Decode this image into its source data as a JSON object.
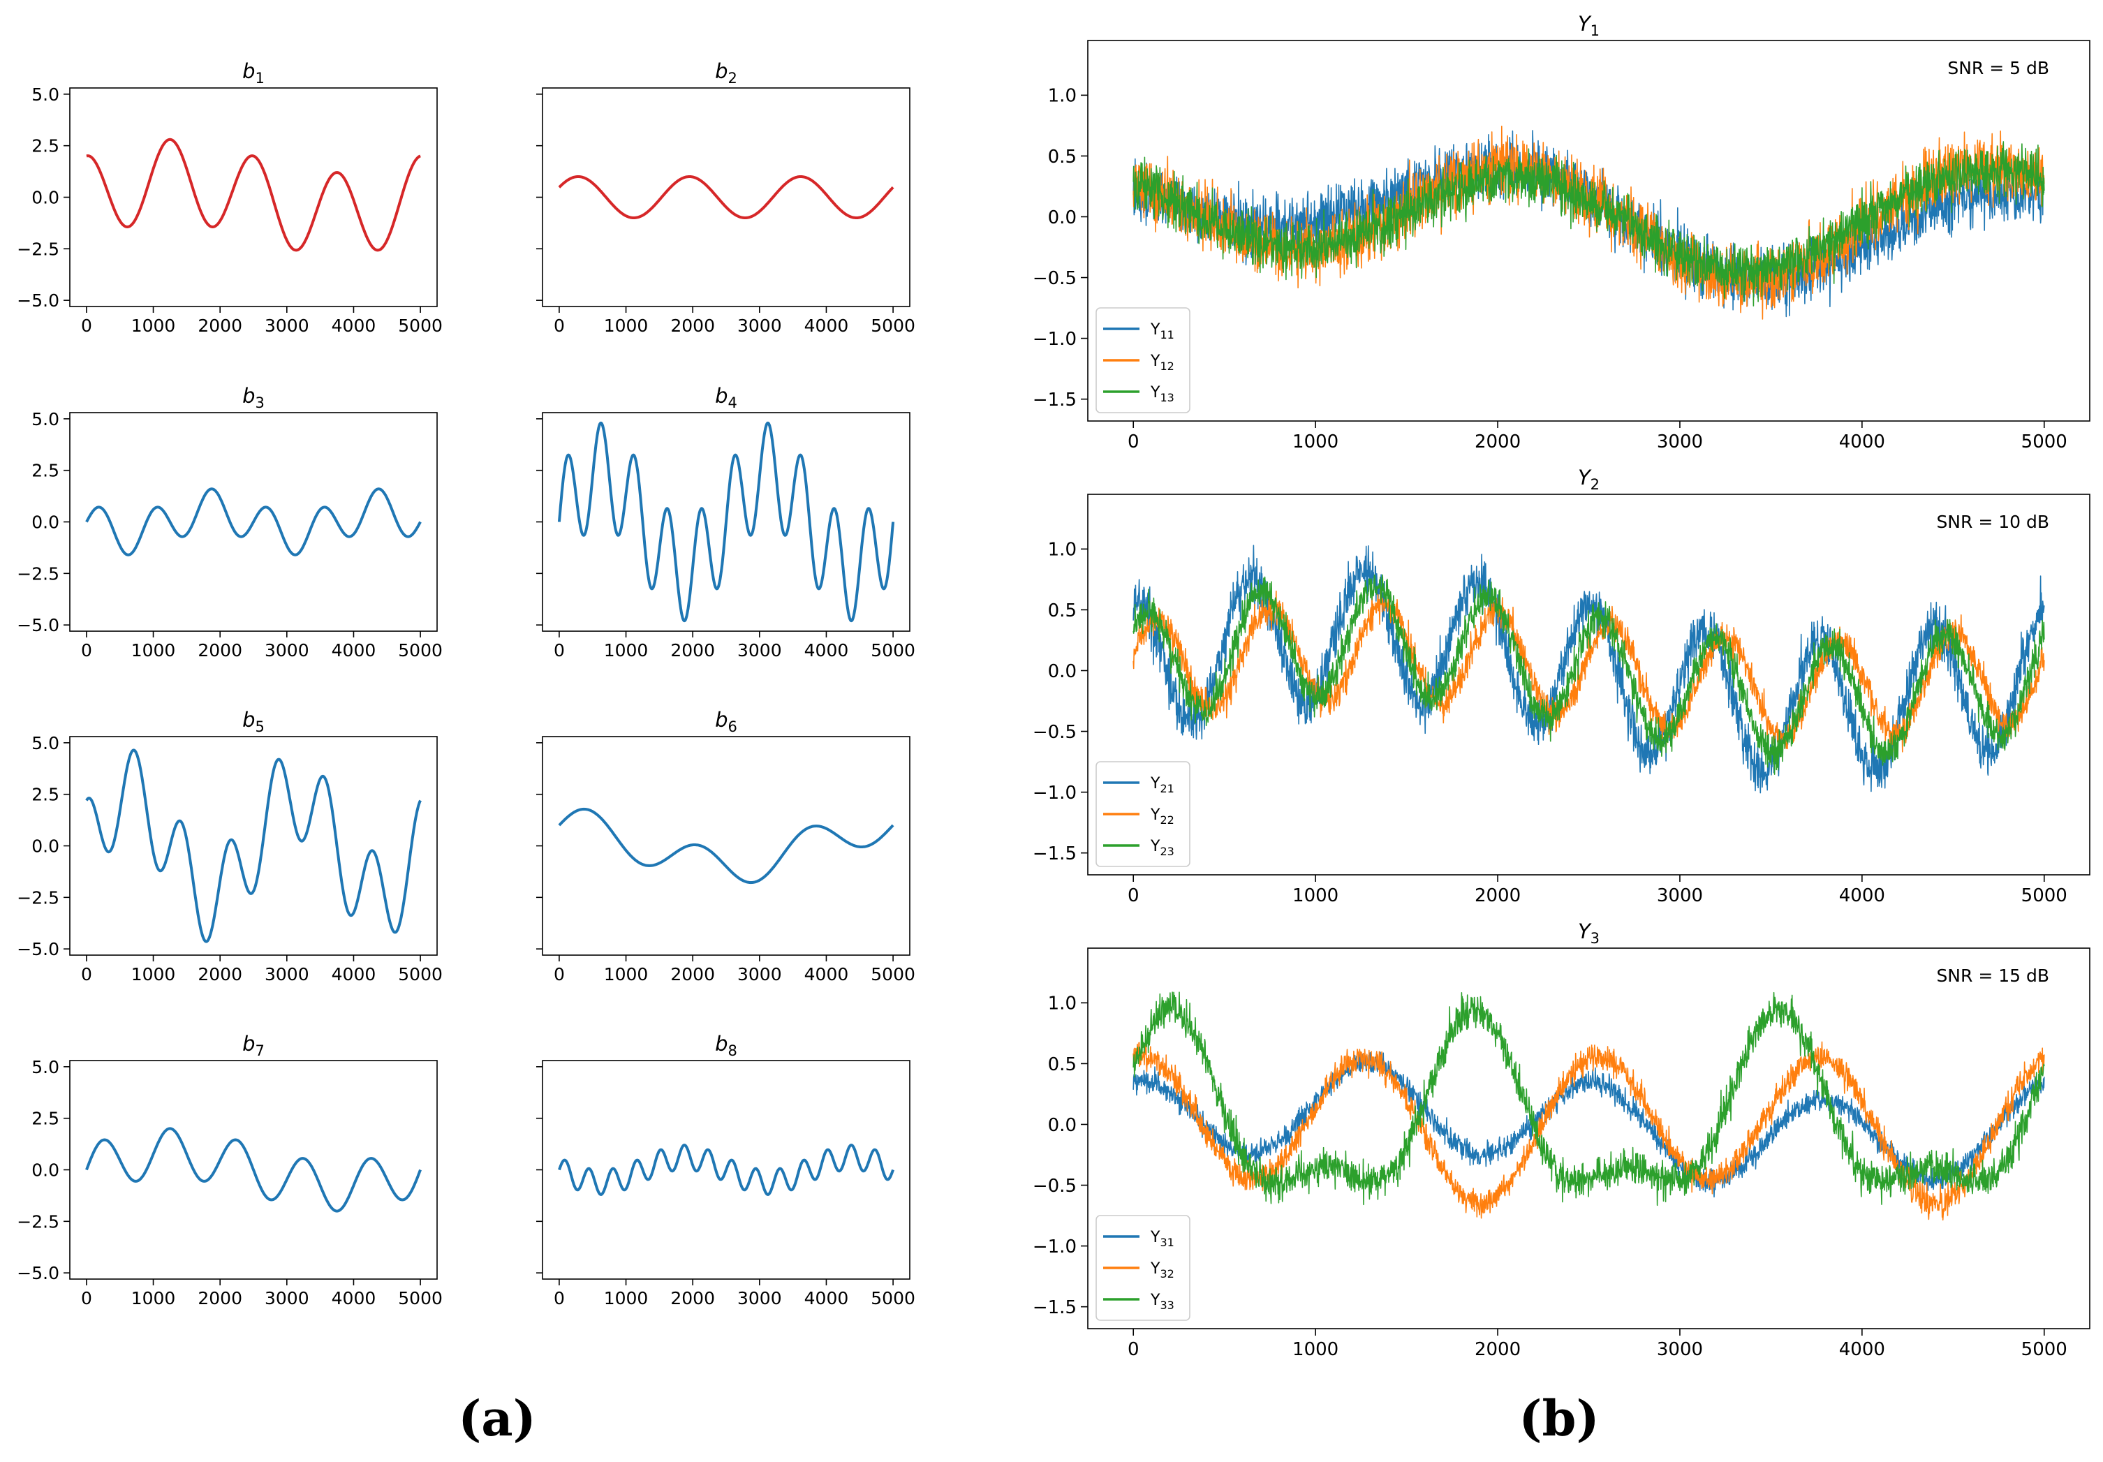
{
  "figure": {
    "panel_a_label": "(a)",
    "panel_b_label": "(b)"
  },
  "chart_data": [
    {
      "type": "line",
      "id": "b1",
      "title": {
        "base": "b",
        "sub": "1"
      },
      "color": "#d62728",
      "x_range": [
        0,
        5000
      ],
      "xlim": [
        -250,
        5250
      ],
      "ylim": [
        -5.3,
        5.3
      ],
      "xticks": [
        "0",
        "1000",
        "2000",
        "3000",
        "4000",
        "5000"
      ],
      "yticks": [
        5.0,
        2.5,
        0.0,
        -2.5,
        -5.0
      ],
      "ytick_labels": [
        "5.0",
        "2.5",
        "0.0",
        "−2.5",
        "−5.0"
      ],
      "show_ytick_labels": true,
      "components": [
        {
          "amp": 2.0,
          "freq": 4.0,
          "phase": 1.5708
        },
        {
          "amp": 0.8,
          "freq": 1.0,
          "phase": 0.0
        }
      ],
      "noise": 0
    },
    {
      "type": "line",
      "id": "b2",
      "title": {
        "base": "b",
        "sub": "2"
      },
      "color": "#d62728",
      "x_range": [
        0,
        5000
      ],
      "xlim": [
        -250,
        5250
      ],
      "ylim": [
        -5.3,
        5.3
      ],
      "xticks": [
        "0",
        "1000",
        "2000",
        "3000",
        "4000",
        "5000"
      ],
      "yticks": [
        5.0,
        2.5,
        0.0,
        -2.5,
        -5.0
      ],
      "ytick_labels": [
        "5.0",
        "2.5",
        "0.0",
        "−2.5",
        "−5.0"
      ],
      "show_ytick_labels": false,
      "components": [
        {
          "amp": 1.0,
          "freq": 3.0,
          "phase": 0.5
        }
      ],
      "noise": 0
    },
    {
      "type": "line",
      "id": "b3",
      "title": {
        "base": "b",
        "sub": "3"
      },
      "color": "#1f77b4",
      "x_range": [
        0,
        5000
      ],
      "xlim": [
        -250,
        5250
      ],
      "ylim": [
        -5.3,
        5.3
      ],
      "xticks": [
        "0",
        "1000",
        "2000",
        "3000",
        "4000",
        "5000"
      ],
      "yticks": [
        5.0,
        2.5,
        0.0,
        -2.5,
        -5.0
      ],
      "ytick_labels": [
        "5.0",
        "2.5",
        "0.0",
        "−2.5",
        "−5.0"
      ],
      "show_ytick_labels": true,
      "components": [
        {
          "amp": 1.0,
          "freq": 6.0,
          "phase": 0.0
        },
        {
          "amp": 0.6,
          "freq": 2.0,
          "phase": 3.1416
        }
      ],
      "noise": 0
    },
    {
      "type": "line",
      "id": "b4",
      "title": {
        "base": "b",
        "sub": "4"
      },
      "color": "#1f77b4",
      "x_range": [
        0,
        5000
      ],
      "xlim": [
        -250,
        5250
      ],
      "ylim": [
        -5.3,
        5.3
      ],
      "xticks": [
        "0",
        "1000",
        "2000",
        "3000",
        "4000",
        "5000"
      ],
      "yticks": [
        5.0,
        2.5,
        0.0,
        -2.5,
        -5.0
      ],
      "ytick_labels": [
        "5.0",
        "2.5",
        "0.0",
        "−2.5",
        "−5.0"
      ],
      "show_ytick_labels": false,
      "components": [
        {
          "amp": 2.5,
          "freq": 10.0,
          "phase": 0.0
        },
        {
          "amp": 2.3,
          "freq": 2.0,
          "phase": 0.0
        }
      ],
      "noise": 0
    },
    {
      "type": "line",
      "id": "b5",
      "title": {
        "base": "b",
        "sub": "5"
      },
      "color": "#1f77b4",
      "x_range": [
        0,
        5000
      ],
      "xlim": [
        -250,
        5250
      ],
      "ylim": [
        -5.3,
        5.3
      ],
      "xticks": [
        "0",
        "1000",
        "2000",
        "3000",
        "4000",
        "5000"
      ],
      "yticks": [
        5.0,
        2.5,
        0.0,
        -2.5,
        -5.0
      ],
      "ytick_labels": [
        "5.0",
        "2.5",
        "0.0",
        "−2.5",
        "−5.0"
      ],
      "show_ytick_labels": true,
      "components": [
        {
          "amp": 2.2,
          "freq": 7.0,
          "phase": 1.5708
        },
        {
          "amp": 2.5,
          "freq": 2.0,
          "phase": 0.0
        }
      ],
      "noise": 0
    },
    {
      "type": "line",
      "id": "b6",
      "title": {
        "base": "b",
        "sub": "6"
      },
      "color": "#1f77b4",
      "x_range": [
        0,
        5000
      ],
      "xlim": [
        -250,
        5250
      ],
      "ylim": [
        -5.3,
        5.3
      ],
      "xticks": [
        "0",
        "1000",
        "2000",
        "3000",
        "4000",
        "5000"
      ],
      "yticks": [
        5.0,
        2.5,
        0.0,
        -2.5,
        -5.0
      ],
      "ytick_labels": [
        "5.0",
        "2.5",
        "0.0",
        "−2.5",
        "−5.0"
      ],
      "show_ytick_labels": false,
      "components": [
        {
          "amp": 1.0,
          "freq": 1.0,
          "phase": 1.5708
        },
        {
          "amp": 0.9,
          "freq": 3.0,
          "phase": 0.0
        }
      ],
      "noise": 0
    },
    {
      "type": "line",
      "id": "b7",
      "title": {
        "base": "b",
        "sub": "7"
      },
      "color": "#1f77b4",
      "x_range": [
        0,
        5000
      ],
      "xlim": [
        -250,
        5250
      ],
      "ylim": [
        -5.3,
        5.3
      ],
      "xticks": [
        "0",
        "1000",
        "2000",
        "3000",
        "4000",
        "5000"
      ],
      "yticks": [
        5.0,
        2.5,
        0.0,
        -2.5,
        -5.0
      ],
      "ytick_labels": [
        "5.0",
        "2.5",
        "0.0",
        "−2.5",
        "−5.0"
      ],
      "show_ytick_labels": true,
      "components": [
        {
          "amp": 1.2,
          "freq": 5.0,
          "phase": 0.0
        },
        {
          "amp": 0.8,
          "freq": 1.0,
          "phase": 0.0
        }
      ],
      "noise": 0
    },
    {
      "type": "line",
      "id": "b8",
      "title": {
        "base": "b",
        "sub": "8"
      },
      "color": "#1f77b4",
      "x_range": [
        0,
        5000
      ],
      "xlim": [
        -250,
        5250
      ],
      "ylim": [
        -5.3,
        5.3
      ],
      "xticks": [
        "0",
        "1000",
        "2000",
        "3000",
        "4000",
        "5000"
      ],
      "yticks": [
        5.0,
        2.5,
        0.0,
        -2.5,
        -5.0
      ],
      "ytick_labels": [
        "5.0",
        "2.5",
        "0.0",
        "−2.5",
        "−5.0"
      ],
      "show_ytick_labels": false,
      "components": [
        {
          "amp": 0.6,
          "freq": 14.0,
          "phase": 0.0
        },
        {
          "amp": 0.6,
          "freq": 2.0,
          "phase": 3.1416
        }
      ],
      "noise": 0
    },
    {
      "type": "line",
      "id": "Y1",
      "title": {
        "base": "Y",
        "sub": "1"
      },
      "annotation": "SNR = 5 dB",
      "x_range": [
        0,
        5000
      ],
      "xlim": [
        -250,
        5250
      ],
      "ylim": [
        -1.68,
        1.45
      ],
      "xticks": [
        "0",
        "1000",
        "2000",
        "3000",
        "4000",
        "5000"
      ],
      "yticks": [
        1.0,
        0.5,
        0.0,
        -0.5,
        -1.0,
        -1.5
      ],
      "ytick_labels": [
        "1.0",
        "0.5",
        "0.0",
        "−0.5",
        "−1.0",
        "−1.5"
      ],
      "show_ytick_labels": true,
      "legend": "lower-left",
      "series": [
        {
          "name": {
            "base": "Y",
            "sub": "11"
          },
          "color": "#1f77b4",
          "noise": 0.13,
          "components": [
            {
              "amp": 0.25,
              "freq": 1.0,
              "phase": 0.0
            },
            {
              "amp": 0.28,
              "freq": 2.0,
              "phase": 2.5
            }
          ]
        },
        {
          "name": {
            "base": "Y",
            "sub": "12"
          },
          "color": "#ff7f0e",
          "noise": 0.15,
          "components": [
            {
              "amp": 0.4,
              "freq": 2.0,
              "phase": 2.5
            },
            {
              "amp": 0.12,
              "freq": 1.0,
              "phase": 0.5
            }
          ]
        },
        {
          "name": {
            "base": "Y",
            "sub": "13"
          },
          "color": "#2ca02c",
          "noise": 0.12,
          "components": [
            {
              "amp": 0.35,
              "freq": 2.0,
              "phase": 2.5
            },
            {
              "amp": 0.1,
              "freq": 1.0,
              "phase": 0.8
            }
          ]
        }
      ]
    },
    {
      "type": "line",
      "id": "Y2",
      "title": {
        "base": "Y",
        "sub": "2"
      },
      "annotation": "SNR = 10 dB",
      "x_range": [
        0,
        5000
      ],
      "xlim": [
        -250,
        5250
      ],
      "ylim": [
        -1.68,
        1.45
      ],
      "xticks": [
        "0",
        "1000",
        "2000",
        "3000",
        "4000",
        "5000"
      ],
      "yticks": [
        1.0,
        0.5,
        0.0,
        -0.5,
        -1.0,
        -1.5
      ],
      "ytick_labels": [
        "1.0",
        "0.5",
        "0.0",
        "−0.5",
        "−1.0",
        "−1.5"
      ],
      "show_ytick_labels": true,
      "legend": "lower-left",
      "series": [
        {
          "name": {
            "base": "Y",
            "sub": "21"
          },
          "color": "#1f77b4",
          "noise": 0.11,
          "components": [
            {
              "amp": 0.55,
              "freq": 8.0,
              "phase": 1.4
            },
            {
              "amp": 0.3,
              "freq": 1.0,
              "phase": 0.0
            }
          ]
        },
        {
          "name": {
            "base": "Y",
            "sub": "22"
          },
          "color": "#ff7f0e",
          "noise": 0.07,
          "components": [
            {
              "amp": 0.4,
              "freq": 8.0,
              "phase": 0.3
            },
            {
              "amp": 0.15,
              "freq": 1.0,
              "phase": 0.0
            }
          ]
        },
        {
          "name": {
            "base": "Y",
            "sub": "23"
          },
          "color": "#2ca02c",
          "noise": 0.08,
          "components": [
            {
              "amp": 0.45,
              "freq": 8.0,
              "phase": 0.8
            },
            {
              "amp": 0.25,
              "freq": 1.0,
              "phase": 0.0
            }
          ]
        }
      ]
    },
    {
      "type": "line",
      "id": "Y3",
      "title": {
        "base": "Y",
        "sub": "3"
      },
      "annotation": "SNR = 15 dB",
      "x_range": [
        0,
        5000
      ],
      "xlim": [
        -250,
        5250
      ],
      "ylim": [
        -1.68,
        1.45
      ],
      "xticks": [
        "0",
        "1000",
        "2000",
        "3000",
        "4000",
        "5000"
      ],
      "yticks": [
        1.0,
        0.5,
        0.0,
        -0.5,
        -1.0,
        -1.5
      ],
      "ytick_labels": [
        "1.0",
        "0.5",
        "0.0",
        "−0.5",
        "−1.0",
        "−1.5"
      ],
      "show_ytick_labels": true,
      "legend": "lower-left",
      "series": [
        {
          "name": {
            "base": "Y",
            "sub": "31"
          },
          "color": "#1f77b4",
          "noise": 0.05,
          "components": [
            {
              "amp": 0.35,
              "freq": 4.0,
              "phase": 1.4
            },
            {
              "amp": 0.15,
              "freq": 1.0,
              "phase": 0.0
            }
          ]
        },
        {
          "name": {
            "base": "Y",
            "sub": "32"
          },
          "color": "#ff7f0e",
          "noise": 0.06,
          "components": [
            {
              "amp": 0.55,
              "freq": 4.0,
              "phase": 1.4
            },
            {
              "amp": 0.1,
              "freq": 2.0,
              "phase": 0.0
            }
          ]
        },
        {
          "name": {
            "base": "Y",
            "sub": "33"
          },
          "color": "#2ca02c",
          "noise": 0.08,
          "components": [
            {
              "amp": 0.65,
              "freq": 3.0,
              "phase": 0.8
            },
            {
              "amp": 0.3,
              "freq": 6.0,
              "phase": 0.0
            }
          ]
        }
      ]
    }
  ]
}
